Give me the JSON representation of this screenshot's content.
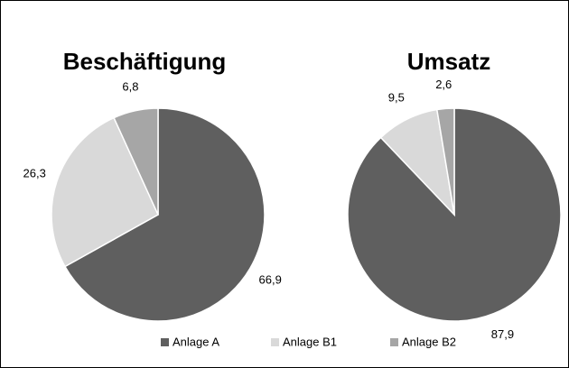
{
  "chart_data": [
    {
      "type": "pie",
      "title": "Beschäftigung",
      "categories": [
        "Anlage A",
        "Anlage B1",
        "Anlage B2"
      ],
      "values": [
        66.9,
        26.3,
        6.8
      ],
      "value_labels": [
        "66,9",
        "26,3",
        "6,8"
      ],
      "colors": [
        "#5f5f5f",
        "#d9d9d9",
        "#a6a6a6"
      ]
    },
    {
      "type": "pie",
      "title": "Umsatz",
      "categories": [
        "Anlage A",
        "Anlage B1",
        "Anlage B2"
      ],
      "values": [
        87.9,
        9.5,
        2.6
      ],
      "value_labels": [
        "87,9",
        "9,5",
        "2,6"
      ],
      "colors": [
        "#5f5f5f",
        "#d9d9d9",
        "#a6a6a6"
      ]
    }
  ]
}
